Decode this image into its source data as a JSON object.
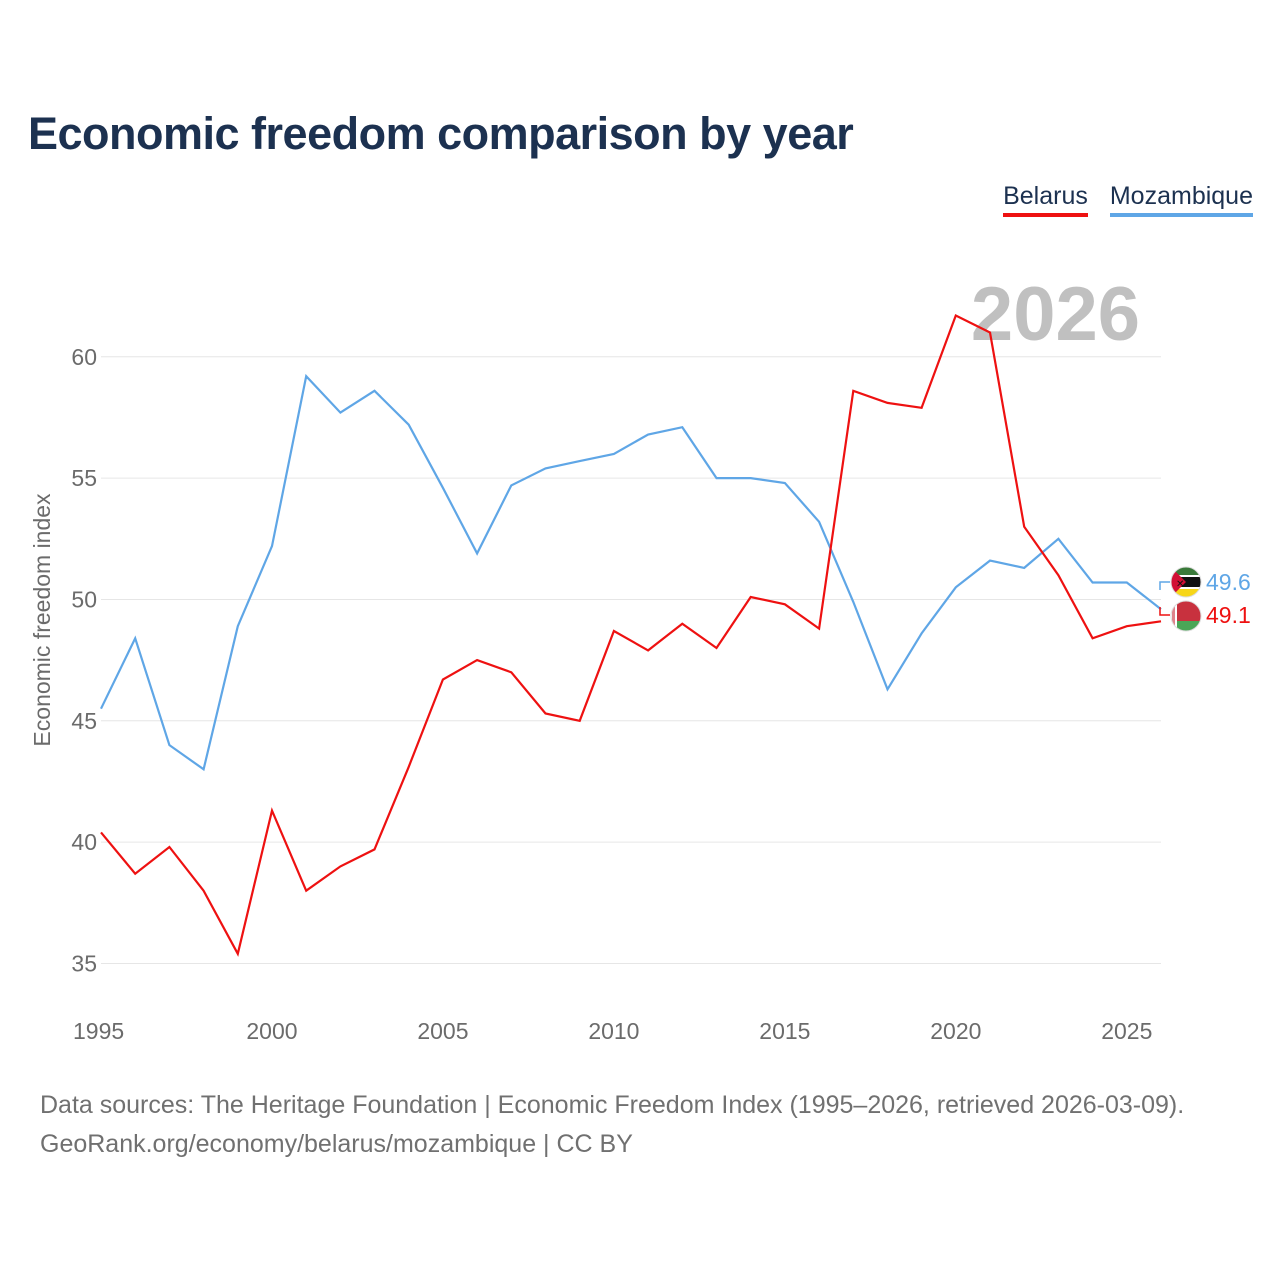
{
  "title": "Economic freedom comparison by year",
  "year_watermark": "2026",
  "footer": {
    "line1": "Data sources: The Heritage Foundation | Economic Freedom Index (1995–2026, retrieved 2026-03-09).",
    "line2": "GeoRank.org/economy/belarus/mozambique | CC BY"
  },
  "colors": {
    "belarus": "#ee1111",
    "mozambique": "#5fa6e6",
    "grid": "#e6e6e6",
    "tick_text": "#6b6b6b",
    "watermark": "#c0c0c0"
  },
  "chart_data": {
    "type": "line",
    "title": "Economic freedom comparison by year",
    "xlabel": "",
    "ylabel": "Economic freedom index",
    "xlim": [
      1995,
      2026
    ],
    "ylim": [
      33,
      63
    ],
    "x_ticks": [
      1995,
      2000,
      2005,
      2010,
      2015,
      2020,
      2025
    ],
    "y_ticks": [
      35,
      40,
      45,
      50,
      55,
      60
    ],
    "x": [
      1995,
      1996,
      1997,
      1998,
      1999,
      2000,
      2001,
      2002,
      2003,
      2004,
      2005,
      2006,
      2007,
      2008,
      2009,
      2010,
      2011,
      2012,
      2013,
      2014,
      2015,
      2016,
      2017,
      2018,
      2019,
      2020,
      2021,
      2022,
      2023,
      2024,
      2025,
      2026
    ],
    "series": [
      {
        "name": "Belarus",
        "color": "#ee1111",
        "end_label": "49.1",
        "values": [
          40.4,
          38.7,
          39.8,
          38.0,
          35.4,
          41.3,
          38.0,
          39.0,
          39.7,
          43.1,
          46.7,
          47.5,
          47.0,
          45.3,
          45.0,
          48.7,
          47.9,
          49.0,
          48.0,
          50.1,
          49.8,
          48.8,
          58.6,
          58.1,
          57.9,
          61.7,
          61.0,
          53.0,
          51.0,
          48.4,
          48.9,
          49.1
        ]
      },
      {
        "name": "Mozambique",
        "color": "#5fa6e6",
        "end_label": "49.6",
        "values": [
          45.5,
          48.4,
          44.0,
          43.0,
          48.9,
          52.2,
          59.2,
          57.7,
          58.6,
          57.2,
          54.6,
          51.9,
          54.7,
          55.4,
          55.7,
          56.0,
          56.8,
          57.1,
          55.0,
          55.0,
          54.8,
          53.2,
          49.9,
          46.3,
          48.6,
          50.5,
          51.6,
          51.3,
          52.5,
          50.7,
          50.7,
          49.6
        ]
      }
    ]
  }
}
